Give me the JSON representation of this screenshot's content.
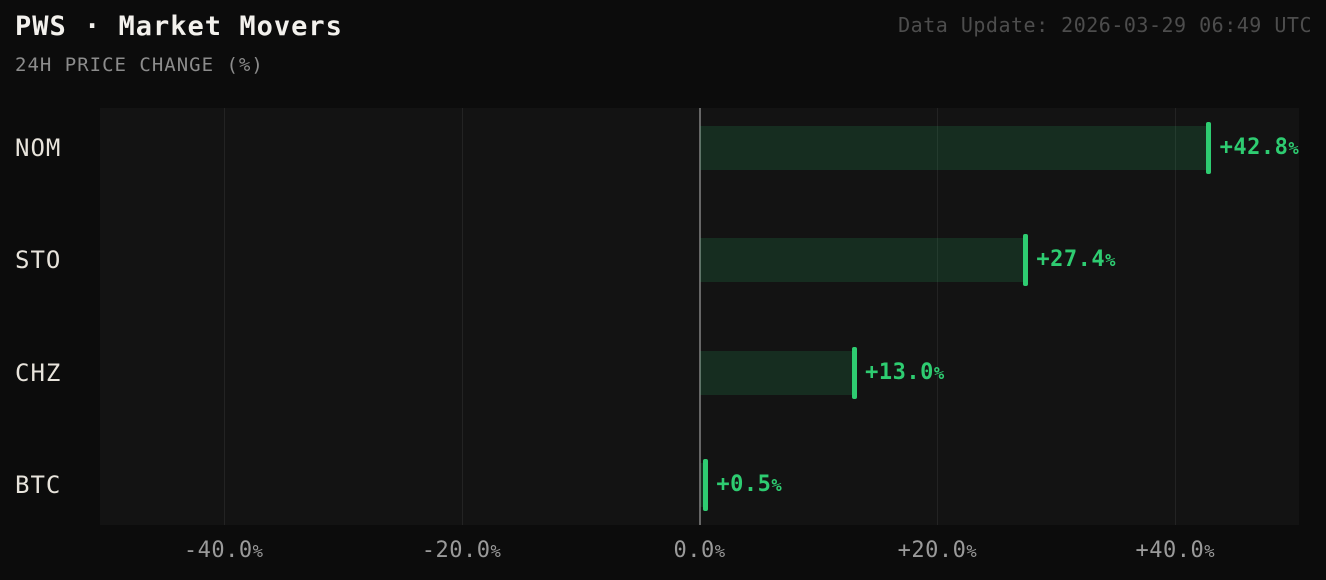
{
  "header": {
    "title": "PWS · Market Movers",
    "subtitle": "24H PRICE CHANGE (%)",
    "data_update": "Data Update: 2026-03-29 06:49 UTC"
  },
  "colors": {
    "page_bg": "#0c0c0c",
    "plot_bg": "#131313",
    "gridline": "#232323",
    "zero_line": "#666666",
    "bar_fill": "rgba(46,204,113,0.14)",
    "accent_green": "#2ecc71",
    "category_text": "#e8e4dc",
    "tick_text": "#9a9a9a",
    "subtitle_text": "#8c8c8c",
    "timestamp_text": "#4d4d4d",
    "title_text": "#f3f1ed"
  },
  "chart_data": {
    "type": "bar",
    "orientation": "horizontal",
    "title": "PWS · Market Movers",
    "subtitle": "24H PRICE CHANGE (%)",
    "categories": [
      "NOM",
      "STO",
      "CHZ",
      "BTC"
    ],
    "values": [
      42.8,
      27.4,
      13.0,
      0.5
    ],
    "value_labels": [
      "+42.8%",
      "+27.4%",
      "+13.0%",
      "+0.5%"
    ],
    "xlabel": "24H PRICE CHANGE (%)",
    "ylabel": "",
    "xlim": [
      -50.4,
      50.4
    ],
    "xticks": [
      -40,
      -20,
      0,
      20,
      40
    ],
    "xtick_labels": [
      "-40.0%",
      "-20.0%",
      "0.0%",
      "+20.0%",
      "+40.0%"
    ],
    "grid": true,
    "legend": false
  }
}
